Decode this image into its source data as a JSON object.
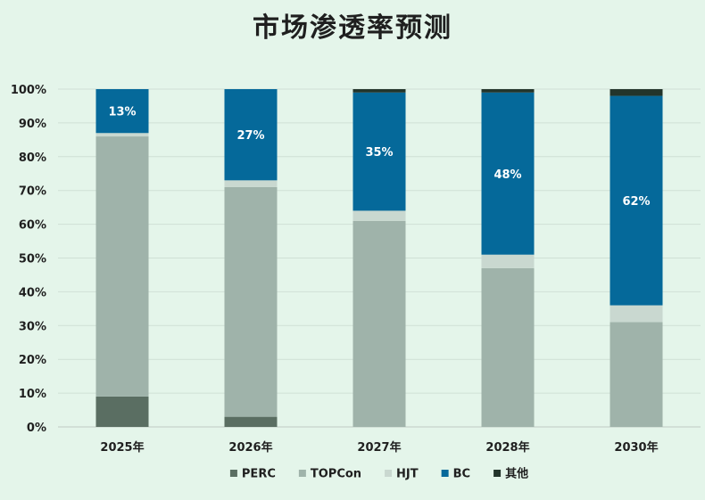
{
  "chart_data": {
    "type": "bar",
    "stacked": true,
    "title": "市场渗透率预测",
    "categories": [
      "2025年",
      "2026年",
      "2027年",
      "2028年",
      "2030年"
    ],
    "ylim": [
      0,
      100
    ],
    "yticks": [
      0,
      10,
      20,
      30,
      40,
      50,
      60,
      70,
      80,
      90,
      100
    ],
    "ytick_labels": [
      "0%",
      "10%",
      "20%",
      "30%",
      "40%",
      "50%",
      "60%",
      "70%",
      "80%",
      "90%",
      "100%"
    ],
    "grid": true,
    "legend_position": "bottom",
    "series": [
      {
        "name": "PERC",
        "color": "#5a6e62",
        "values": [
          9,
          3,
          0,
          0,
          0
        ]
      },
      {
        "name": "TOPCon",
        "color": "#9fb3aa",
        "values": [
          77,
          68,
          61,
          47,
          31
        ]
      },
      {
        "name": "HJT",
        "color": "#c9d8d0",
        "values": [
          1,
          2,
          3,
          4,
          5
        ]
      },
      {
        "name": "BC",
        "color": "#05699a",
        "values": [
          13,
          27,
          35,
          48,
          62
        ]
      },
      {
        "name": "其他",
        "color": "#23352b",
        "values": [
          0,
          0,
          1,
          1,
          2
        ]
      }
    ],
    "data_labels": {
      "series": "BC",
      "labels": [
        "13%",
        "27%",
        "35%",
        "48%",
        "62%"
      ],
      "color": "#ffffff"
    }
  }
}
